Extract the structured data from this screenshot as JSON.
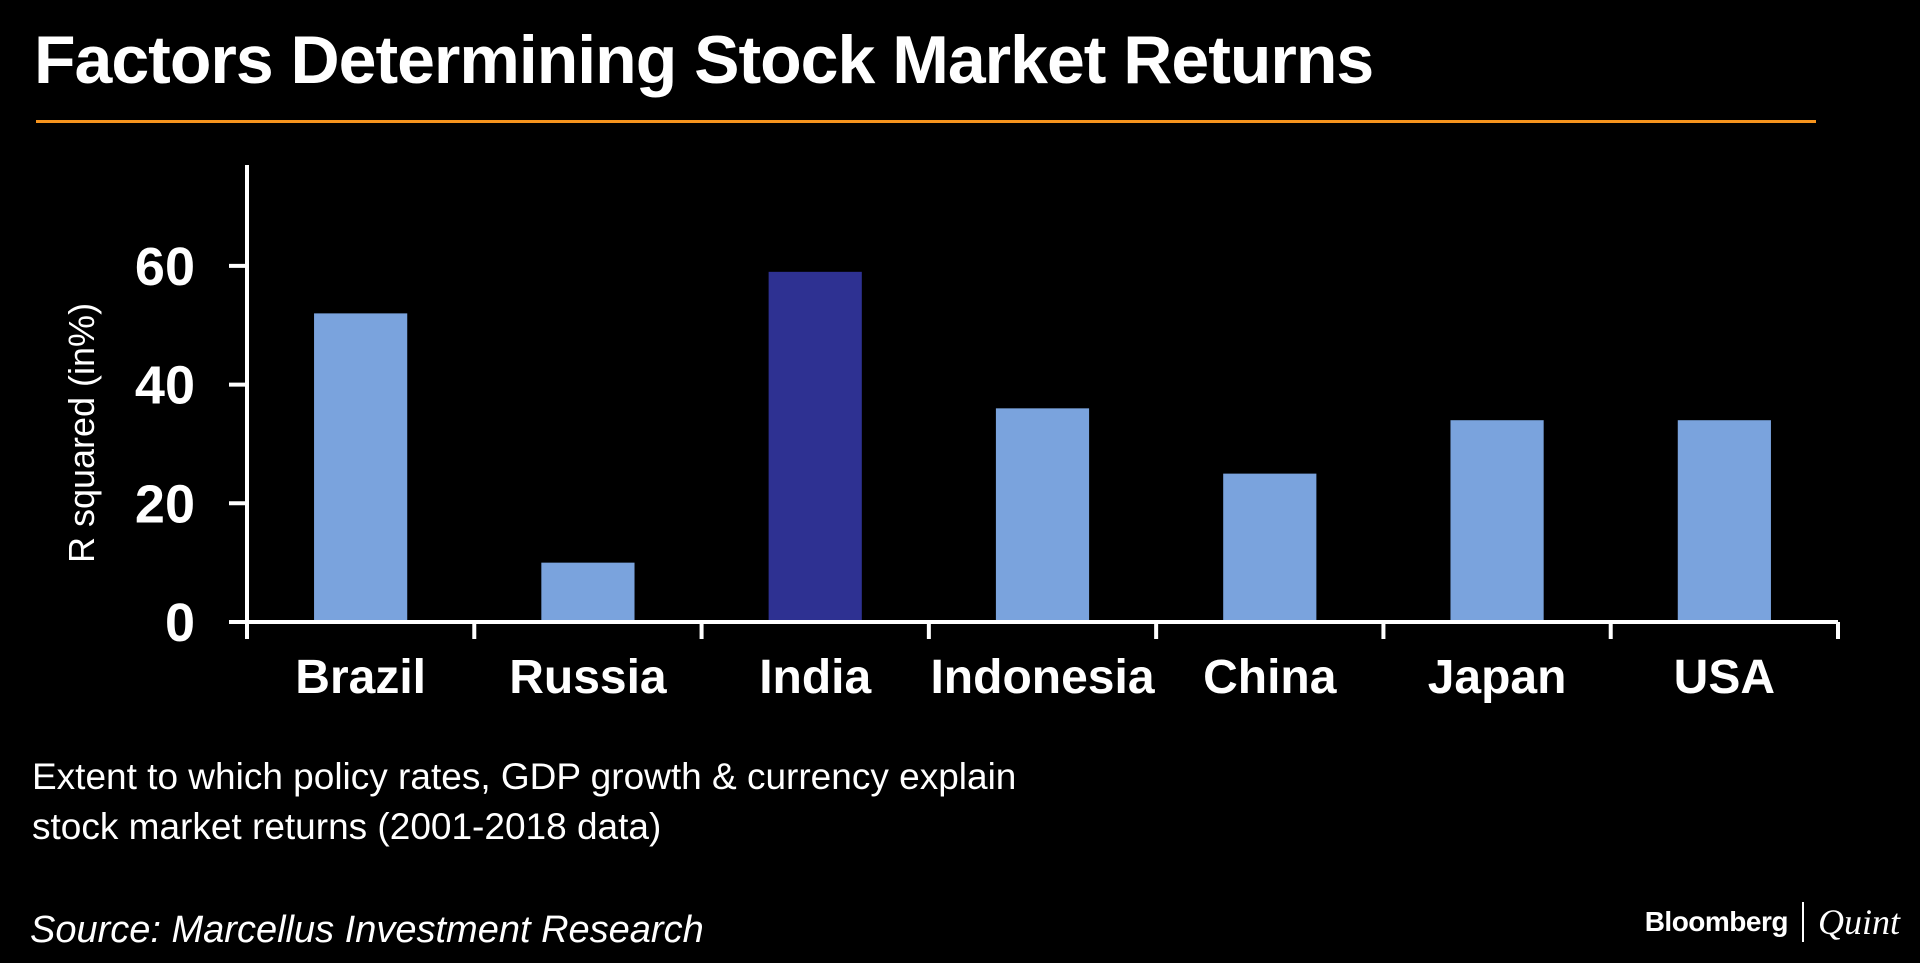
{
  "title": "Factors Determining Stock Market Returns",
  "subtitle_lines": [
    "Extent to which policy rates, GDP growth & currency explain",
    "stock market returns (2001-2018 data)"
  ],
  "source": "Source: Marcellus Investment Research",
  "brand": {
    "bloomberg": "Bloomberg",
    "quint": "Quint"
  },
  "colors": {
    "background": "#000000",
    "title_rule": "#f7941d",
    "bar_default": "#7aa3dd",
    "bar_highlight": "#2e3192",
    "axis": "#ffffff",
    "text": "#ffffff"
  },
  "chart_data": {
    "type": "bar",
    "categories": [
      "Brazil",
      "Russia",
      "India",
      "Indonesia",
      "China",
      "Japan",
      "USA"
    ],
    "values": [
      52,
      10,
      59,
      36,
      25,
      34,
      34
    ],
    "highlight": "India",
    "ylabel": "R squared (in%)",
    "xlabel": "",
    "ylim": [
      0,
      77
    ],
    "yticks": [
      0,
      20,
      40,
      60
    ],
    "grid": false,
    "legend": "none"
  }
}
